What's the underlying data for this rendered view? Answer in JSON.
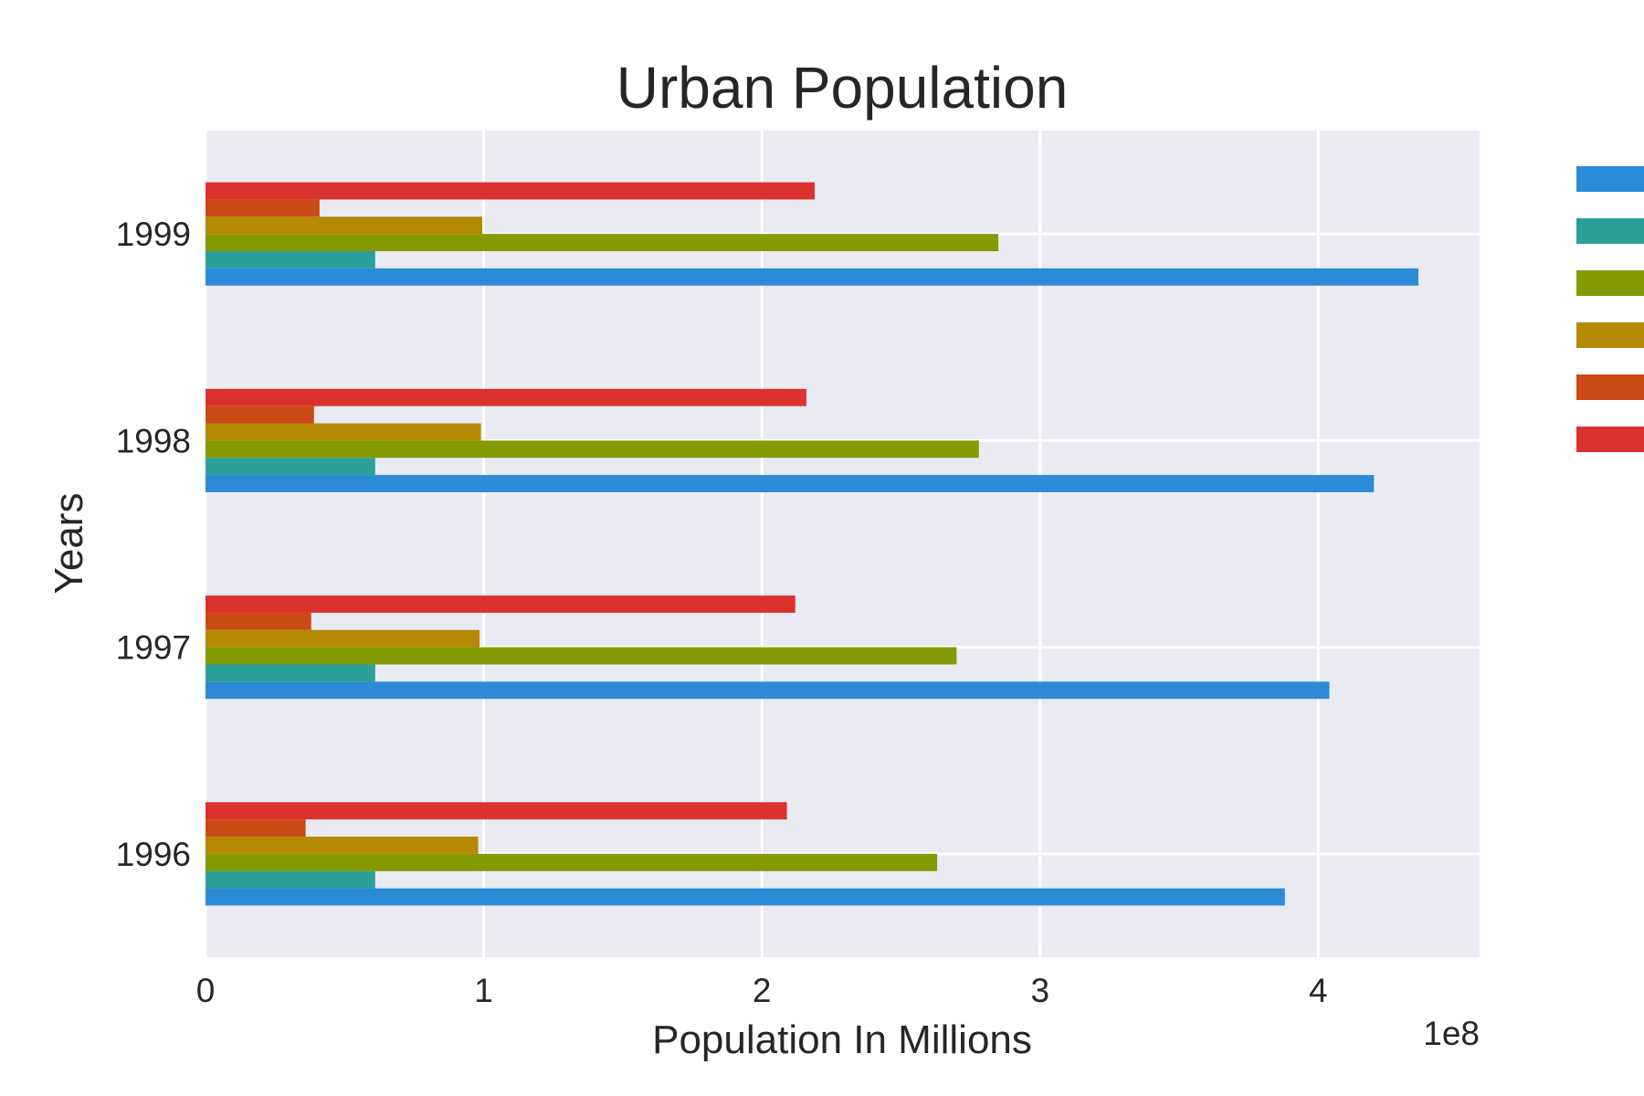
{
  "chart_data": {
    "type": "bar",
    "orientation": "horizontal",
    "title": "Urban Population",
    "xlabel": "Population In Millions",
    "ylabel": "Years",
    "x_offset_label": "1e8",
    "xlim": [
      0,
      4.58
    ],
    "x_ticks": [
      0,
      1,
      2,
      3,
      4
    ],
    "categories": [
      "1996",
      "1997",
      "1998",
      "1999"
    ],
    "grid": true,
    "legend": "right, outside plot (labels cropped)",
    "series": [
      {
        "color": "#2c8bd6",
        "values": [
          3.88,
          4.04,
          4.2,
          4.36
        ]
      },
      {
        "color": "#2aa198",
        "values": [
          0.61,
          0.61,
          0.61,
          0.61
        ]
      },
      {
        "color": "#859900",
        "values": [
          2.63,
          2.7,
          2.78,
          2.85
        ]
      },
      {
        "color": "#b58900",
        "values": [
          0.98,
          0.985,
          0.99,
          0.995
        ]
      },
      {
        "color": "#cb4b16",
        "values": [
          0.36,
          0.38,
          0.39,
          0.41
        ]
      },
      {
        "color": "#dc322f",
        "values": [
          2.09,
          2.12,
          2.16,
          2.19
        ]
      }
    ]
  }
}
